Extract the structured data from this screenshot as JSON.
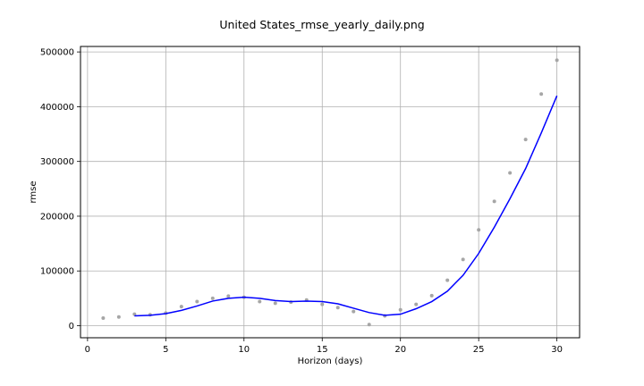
{
  "chart_data": {
    "type": "line",
    "title": "United States_rmse_yearly_daily.png",
    "xlabel": "Horizon (days)",
    "ylabel": "rmse",
    "xlim": [
      -0.45,
      31.45
    ],
    "ylim": [
      -22000,
      510000
    ],
    "xticks": [
      0,
      5,
      10,
      15,
      20,
      25,
      30
    ],
    "yticks": [
      0,
      100000,
      200000,
      300000,
      400000,
      500000
    ],
    "grid": true,
    "colors": {
      "points": "#a6a6a6",
      "line": "#0000ff",
      "grid": "#b0b0b0",
      "axes": "#000000"
    },
    "series": [
      {
        "kind": "scatter",
        "x": [
          1,
          2,
          3,
          4,
          5,
          6,
          7,
          8,
          9,
          10,
          11,
          12,
          13,
          14,
          15,
          16,
          17,
          18,
          19,
          20,
          21,
          22,
          23,
          24,
          25,
          26,
          27,
          28,
          29,
          30
        ],
        "y": [
          14000,
          16000,
          21000,
          20000,
          23000,
          35000,
          44000,
          50000,
          54000,
          52000,
          44000,
          41000,
          43000,
          47000,
          39000,
          33000,
          26000,
          2000,
          18000,
          29000,
          39000,
          55000,
          83000,
          121000,
          175000,
          227000,
          279000,
          340000,
          423000,
          485000
        ]
      },
      {
        "kind": "line",
        "x": [
          3,
          4,
          5,
          6,
          7,
          8,
          9,
          10,
          11,
          12,
          13,
          14,
          15,
          16,
          17,
          18,
          19,
          20,
          21,
          22,
          23,
          24,
          25,
          26,
          27,
          28,
          29,
          30
        ],
        "y": [
          18000,
          19000,
          22000,
          28000,
          36000,
          45000,
          50000,
          52000,
          50000,
          46000,
          44000,
          45000,
          44000,
          40000,
          32000,
          24000,
          19000,
          21000,
          31000,
          44000,
          63000,
          92000,
          132000,
          180000,
          232000,
          287000,
          352000,
          420000
        ]
      }
    ]
  }
}
